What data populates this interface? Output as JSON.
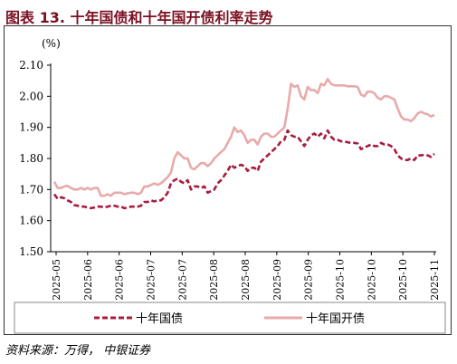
{
  "title": "图表 13. 十年国债和十年国开债利率走势",
  "source": "资料来源：万得， 中银证券",
  "chart_data": {
    "type": "line",
    "ylabel": "(%)",
    "ylim": [
      1.5,
      2.1
    ],
    "yticks": [
      1.5,
      1.6,
      1.7,
      1.8,
      1.9,
      2.0,
      2.1
    ],
    "grid": false,
    "legend": "bottom",
    "x_ticks": [
      "2025-05",
      "2025-06",
      "2025-06",
      "2025-07",
      "2025-07",
      "2025-08",
      "2025-08",
      "2025-09",
      "2025-09",
      "2025-10",
      "2025-10",
      "2025-10",
      "2025-11"
    ],
    "series": [
      {
        "name": "十年国债",
        "color": "#a81c3d",
        "style": "dashed",
        "values": [
          1.685,
          1.67,
          1.675,
          1.672,
          1.665,
          1.66,
          1.65,
          1.648,
          1.645,
          1.645,
          1.642,
          1.64,
          1.642,
          1.645,
          1.645,
          1.642,
          1.645,
          1.648,
          1.648,
          1.645,
          1.645,
          1.64,
          1.642,
          1.645,
          1.645,
          1.645,
          1.648,
          1.66,
          1.66,
          1.665,
          1.662,
          1.665,
          1.665,
          1.675,
          1.69,
          1.72,
          1.73,
          1.735,
          1.725,
          1.72,
          1.73,
          1.7,
          1.71,
          1.71,
          1.705,
          1.71,
          1.69,
          1.695,
          1.7,
          1.72,
          1.73,
          1.745,
          1.76,
          1.78,
          1.77,
          1.775,
          1.78,
          1.775,
          1.76,
          1.77,
          1.77,
          1.76,
          1.79,
          1.8,
          1.81,
          1.82,
          1.83,
          1.84,
          1.855,
          1.86,
          1.89,
          1.875,
          1.87,
          1.87,
          1.855,
          1.84,
          1.86,
          1.875,
          1.88,
          1.87,
          1.88,
          1.865,
          1.89,
          1.87,
          1.86,
          1.86,
          1.855,
          1.855,
          1.852,
          1.85,
          1.85,
          1.848,
          1.83,
          1.835,
          1.84,
          1.845,
          1.84,
          1.84,
          1.85,
          1.845,
          1.845,
          1.84,
          1.83,
          1.81,
          1.8,
          1.795,
          1.795,
          1.8,
          1.795,
          1.81,
          1.81,
          1.812,
          1.81,
          1.805,
          1.815
        ]
      },
      {
        "name": "十年国开债",
        "color": "#e8aaaa",
        "style": "solid",
        "values": [
          1.725,
          1.705,
          1.705,
          1.71,
          1.712,
          1.705,
          1.7,
          1.7,
          1.705,
          1.7,
          1.705,
          1.7,
          1.705,
          1.705,
          1.68,
          1.68,
          1.685,
          1.68,
          1.69,
          1.69,
          1.69,
          1.685,
          1.688,
          1.69,
          1.69,
          1.685,
          1.69,
          1.71,
          1.71,
          1.715,
          1.72,
          1.715,
          1.72,
          1.73,
          1.74,
          1.755,
          1.8,
          1.82,
          1.81,
          1.8,
          1.8,
          1.77,
          1.765,
          1.775,
          1.785,
          1.785,
          1.775,
          1.785,
          1.8,
          1.81,
          1.82,
          1.83,
          1.85,
          1.87,
          1.9,
          1.885,
          1.89,
          1.875,
          1.85,
          1.86,
          1.86,
          1.845,
          1.87,
          1.88,
          1.88,
          1.87,
          1.87,
          1.88,
          1.89,
          1.9,
          1.96,
          2.04,
          2.03,
          2.035,
          2.0,
          1.99,
          2.03,
          2.02,
          2.02,
          2.01,
          2.04,
          2.035,
          2.055,
          2.04,
          2.035,
          2.035,
          2.035,
          2.035,
          2.032,
          2.032,
          2.032,
          2.03,
          2.005,
          2.0,
          2.015,
          2.015,
          2.01,
          1.995,
          1.99,
          2.0,
          2.0,
          1.995,
          1.99,
          1.96,
          1.935,
          1.925,
          1.925,
          1.92,
          1.93,
          1.945,
          1.95,
          1.945,
          1.942,
          1.935,
          1.94
        ]
      }
    ]
  }
}
